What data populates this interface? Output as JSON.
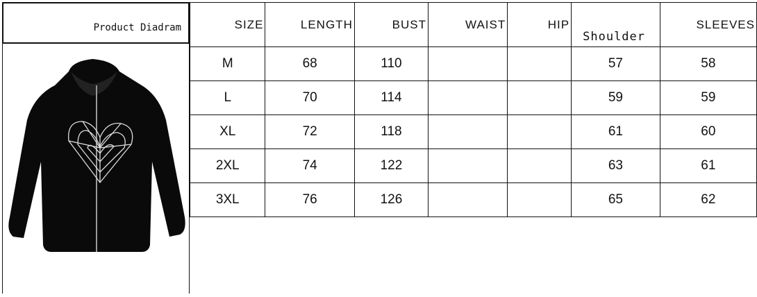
{
  "diagram_label": "Product Diadram",
  "headers": [
    "SIZE",
    "LENGTH",
    "BUST",
    "WAIST",
    "HIP",
    "Shoulder",
    "SLEEVES"
  ],
  "rows": [
    [
      "M",
      "68",
      "110",
      "",
      "",
      "57",
      "58"
    ],
    [
      "L",
      "70",
      "114",
      "",
      "",
      "59",
      "59"
    ],
    [
      "XL",
      "72",
      "118",
      "",
      "",
      "61",
      "60"
    ],
    [
      "2XL",
      "74",
      "122",
      "",
      "",
      "63",
      "61"
    ],
    [
      "3XL",
      "76",
      "126",
      "",
      "",
      "65",
      "62"
    ]
  ],
  "product_image": "black-zip-hoodie-with-spider-web-heart"
}
